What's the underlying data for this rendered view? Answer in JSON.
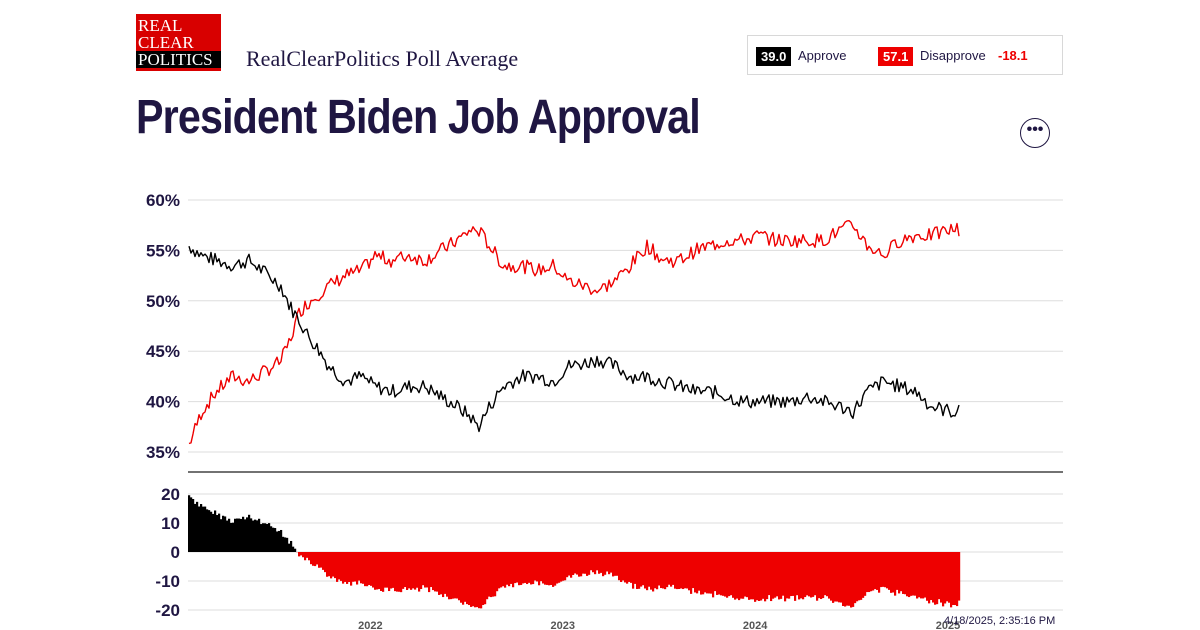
{
  "logo": {
    "lines": [
      "REAL",
      "CLEAR",
      "POLITICS"
    ]
  },
  "header": {
    "subtitle": "RealClearPolitics Poll Average",
    "title": "President Biden Job Approval"
  },
  "legend": {
    "approve_value": "39.0",
    "approve_label": "Approve",
    "disapprove_value": "57.1",
    "disapprove_label": "Disapprove",
    "spread": "-18.1"
  },
  "menu": {
    "icon": "more-horizontal-icon",
    "label": "•••"
  },
  "timestamp": "4/18/2025, 2:35:16 PM",
  "colors": {
    "approve": "#000000",
    "disapprove": "#ee0000",
    "title": "#1f1642",
    "grid": "#dddddd"
  },
  "chart_data": {
    "type": "line",
    "ylim": [
      35,
      60
    ],
    "y_ticks": [
      "60%",
      "55%",
      "50%",
      "45%",
      "40%",
      "35%"
    ],
    "x_ticks": [
      "2022",
      "2023",
      "2024",
      "2025"
    ],
    "x_range": [
      "2021-01-20",
      "2025-01-20"
    ],
    "grid": true,
    "series": [
      {
        "name": "Approve",
        "color": "#000000",
        "points": [
          [
            "2021-01-20",
            55.5
          ],
          [
            "2021-02-15",
            54.5
          ],
          [
            "2021-03-15",
            54.0
          ],
          [
            "2021-04-15",
            53.5
          ],
          [
            "2021-05-15",
            54.0
          ],
          [
            "2021-06-15",
            52.8
          ],
          [
            "2021-07-15",
            51.5
          ],
          [
            "2021-08-01",
            49.5
          ],
          [
            "2021-08-20",
            48.0
          ],
          [
            "2021-09-05",
            46.5
          ],
          [
            "2021-09-20",
            45.5
          ],
          [
            "2021-10-15",
            43.5
          ],
          [
            "2021-11-15",
            42.0
          ],
          [
            "2021-12-15",
            42.5
          ],
          [
            "2022-01-10",
            41.5
          ],
          [
            "2022-02-10",
            41.0
          ],
          [
            "2022-03-15",
            41.5
          ],
          [
            "2022-04-15",
            41.5
          ],
          [
            "2022-05-15",
            40.5
          ],
          [
            "2022-06-15",
            39.5
          ],
          [
            "2022-07-10",
            38.5
          ],
          [
            "2022-07-25",
            37.5
          ],
          [
            "2022-08-15",
            39.5
          ],
          [
            "2022-09-10",
            41.5
          ],
          [
            "2022-10-15",
            42.5
          ],
          [
            "2022-11-15",
            42.5
          ],
          [
            "2022-12-15",
            42.0
          ],
          [
            "2023-01-10",
            43.5
          ],
          [
            "2023-02-10",
            43.8
          ],
          [
            "2023-03-10",
            44.2
          ],
          [
            "2023-04-10",
            43.5
          ],
          [
            "2023-05-10",
            42.5
          ],
          [
            "2023-06-10",
            42.5
          ],
          [
            "2023-07-10",
            42.0
          ],
          [
            "2023-08-10",
            41.5
          ],
          [
            "2023-09-10",
            41.0
          ],
          [
            "2023-10-10",
            41.0
          ],
          [
            "2023-11-10",
            40.5
          ],
          [
            "2023-12-10",
            40.0
          ],
          [
            "2024-01-10",
            40.0
          ],
          [
            "2024-02-10",
            40.0
          ],
          [
            "2024-03-10",
            40.0
          ],
          [
            "2024-04-10",
            40.5
          ],
          [
            "2024-05-10",
            40.0
          ],
          [
            "2024-06-10",
            39.5
          ],
          [
            "2024-07-05",
            39.0
          ],
          [
            "2024-08-01",
            41.0
          ],
          [
            "2024-09-01",
            42.0
          ],
          [
            "2024-10-01",
            41.5
          ],
          [
            "2024-11-01",
            41.0
          ],
          [
            "2024-12-01",
            39.5
          ],
          [
            "2025-01-10",
            39.0
          ]
        ]
      },
      {
        "name": "Disapprove",
        "color": "#ee0000",
        "points": [
          [
            "2021-01-20",
            35.5
          ],
          [
            "2021-02-15",
            39.0
          ],
          [
            "2021-03-15",
            41.0
          ],
          [
            "2021-04-15",
            42.5
          ],
          [
            "2021-05-15",
            42.0
          ],
          [
            "2021-06-15",
            43.0
          ],
          [
            "2021-07-15",
            44.0
          ],
          [
            "2021-08-01",
            46.0
          ],
          [
            "2021-08-20",
            49.0
          ],
          [
            "2021-09-05",
            49.8
          ],
          [
            "2021-09-20",
            50.5
          ],
          [
            "2021-10-15",
            51.5
          ],
          [
            "2021-11-15",
            52.5
          ],
          [
            "2021-12-15",
            53.0
          ],
          [
            "2022-01-10",
            54.5
          ],
          [
            "2022-02-10",
            54.0
          ],
          [
            "2022-03-15",
            54.5
          ],
          [
            "2022-04-15",
            54.0
          ],
          [
            "2022-05-15",
            55.0
          ],
          [
            "2022-06-15",
            56.0
          ],
          [
            "2022-07-10",
            57.0
          ],
          [
            "2022-07-25",
            57.0
          ],
          [
            "2022-08-15",
            55.5
          ],
          [
            "2022-09-10",
            53.5
          ],
          [
            "2022-10-15",
            53.5
          ],
          [
            "2022-11-15",
            53.0
          ],
          [
            "2022-12-15",
            53.5
          ],
          [
            "2023-01-10",
            52.0
          ],
          [
            "2023-02-10",
            51.5
          ],
          [
            "2023-03-10",
            51.0
          ],
          [
            "2023-04-10",
            52.0
          ],
          [
            "2023-05-10",
            53.5
          ],
          [
            "2023-06-10",
            55.5
          ],
          [
            "2023-07-10",
            54.0
          ],
          [
            "2023-08-10",
            54.0
          ],
          [
            "2023-09-10",
            55.0
          ],
          [
            "2023-10-10",
            55.5
          ],
          [
            "2023-11-10",
            56.0
          ],
          [
            "2023-12-10",
            56.0
          ],
          [
            "2024-01-10",
            56.5
          ],
          [
            "2024-02-10",
            56.0
          ],
          [
            "2024-03-10",
            56.0
          ],
          [
            "2024-04-10",
            56.0
          ],
          [
            "2024-05-10",
            56.0
          ],
          [
            "2024-06-10",
            57.0
          ],
          [
            "2024-07-05",
            57.5
          ],
          [
            "2024-08-01",
            55.5
          ],
          [
            "2024-09-01",
            54.5
          ],
          [
            "2024-10-01",
            56.0
          ],
          [
            "2024-11-01",
            56.5
          ],
          [
            "2024-12-01",
            56.5
          ],
          [
            "2025-01-10",
            57.1
          ]
        ]
      }
    ],
    "spread_panel": {
      "type": "bar",
      "ylim": [
        -20,
        20
      ],
      "y_ticks": [
        "20",
        "10",
        "0",
        "-10",
        "-20"
      ],
      "positive_color": "#ee0000",
      "negative_color": "#000000"
    }
  }
}
